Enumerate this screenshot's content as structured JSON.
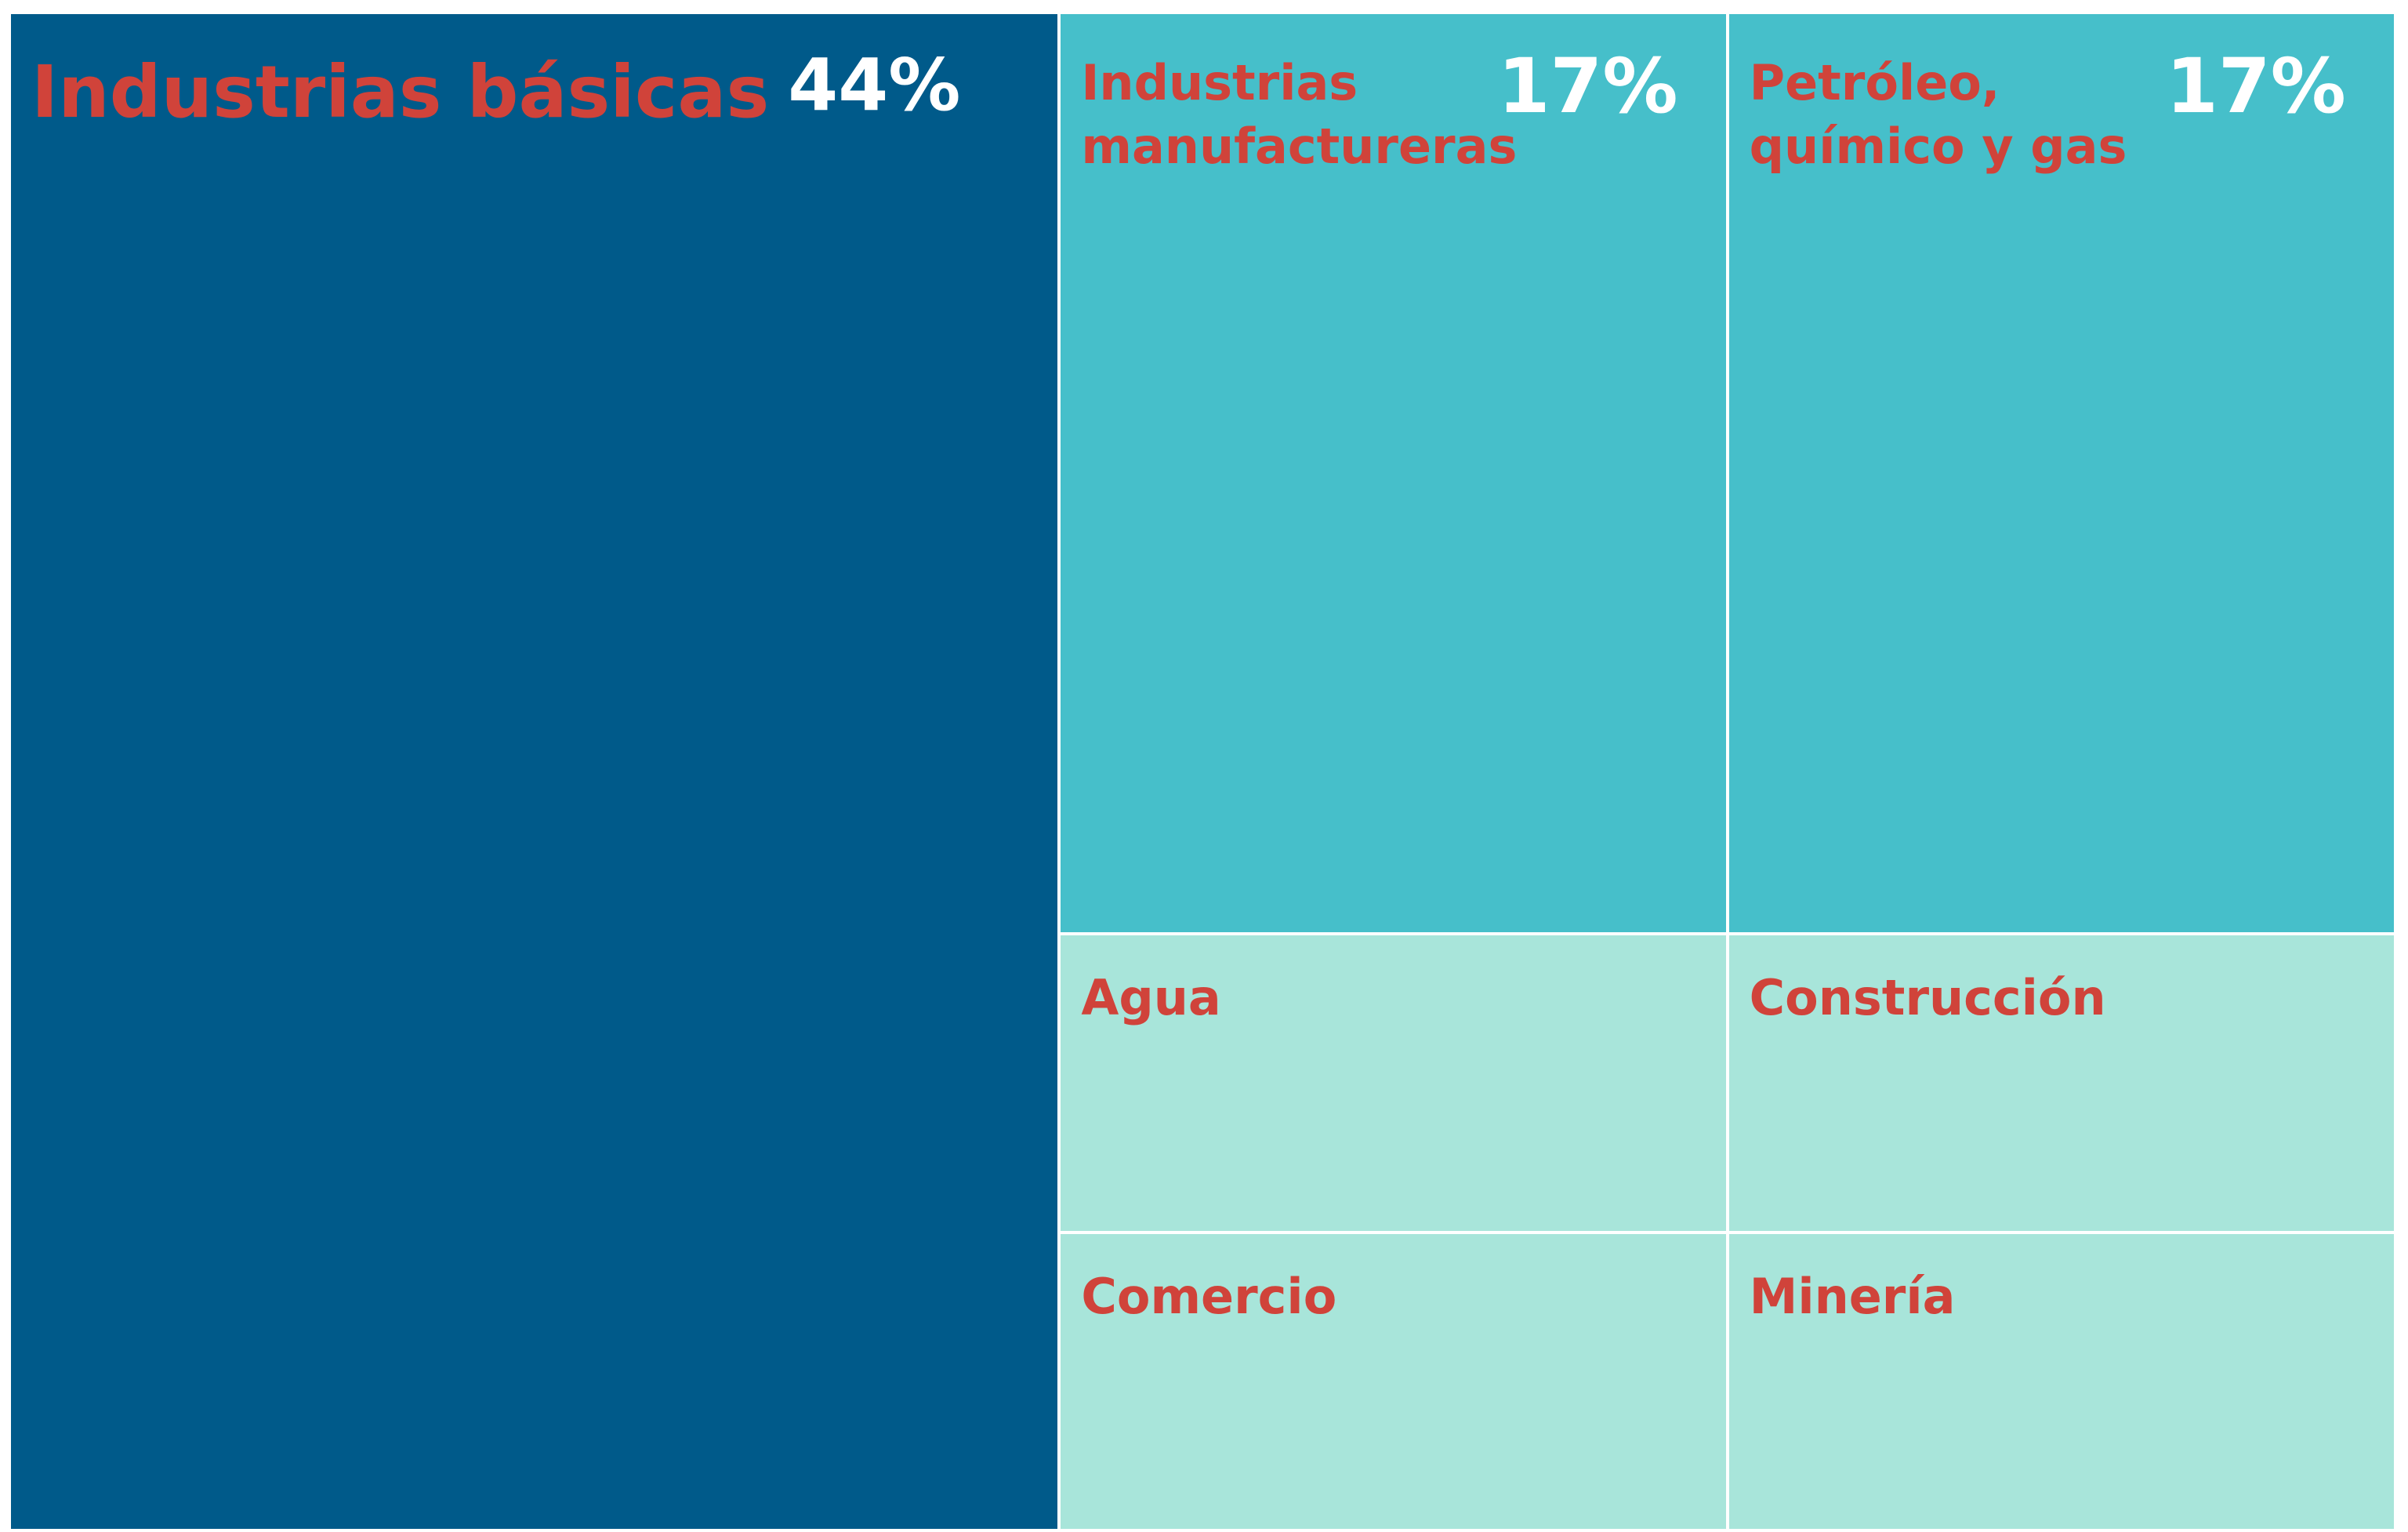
{
  "chart_data": {
    "type": "treemap",
    "categories": [
      "Industrias básicas",
      "Industrias manufactureras",
      "Petróleo, químico y gas",
      "Agua",
      "Construcción",
      "Comercio",
      "Minería"
    ],
    "values": [
      44,
      17,
      17,
      5.5,
      5.5,
      5.5,
      5.5
    ],
    "value_labels": [
      "44%",
      "17%",
      "17%",
      null,
      null,
      null,
      null
    ],
    "colors": [
      "#005a8a",
      "#46bfca",
      "#46bfca",
      "#a8e5da",
      "#a8e5da",
      "#a8e5da",
      "#a8e5da"
    ],
    "label_color": "#d0433a",
    "value_label_color": "#ffffff"
  }
}
